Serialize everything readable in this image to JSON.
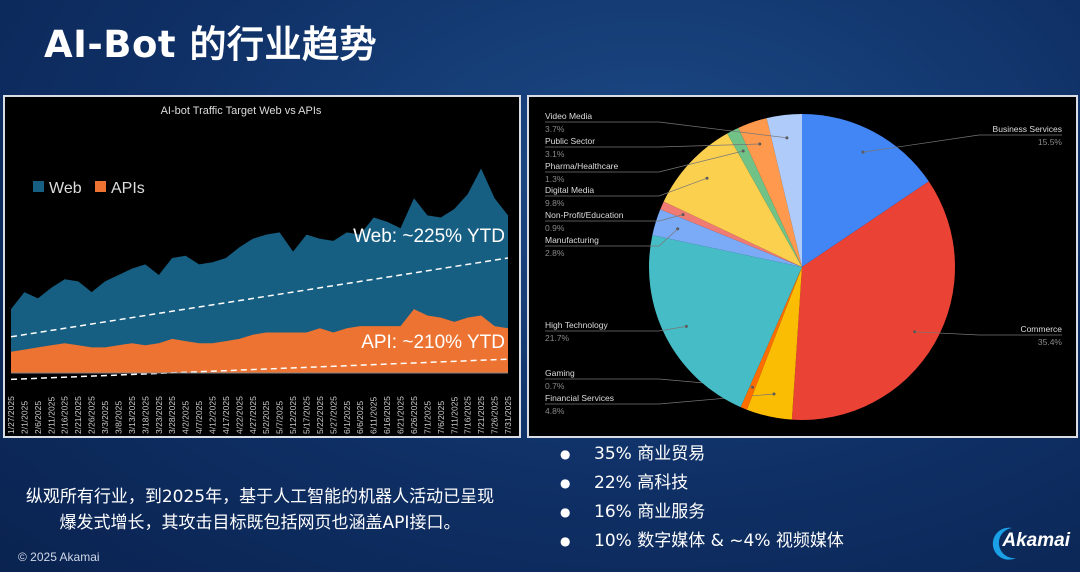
{
  "title": "AI-Bot 的行业趋势",
  "copyright": "© 2025 Akamai",
  "logo_text": "Akamai",
  "note": "纵观所有行业，到2025年，基于人工智能的机器人活动已呈现爆发式增长，其攻击目标既包括网页也涵盖API接口。",
  "bullets": [
    "35% 商业贸易",
    "22% 高科技",
    "16% 商业服务",
    "10% 数字媒体 & ~4% 视频媒体"
  ],
  "chart_data": [
    {
      "type": "area",
      "title": "AI-bot Traffic Target Web vs APIs",
      "categories": [
        "1/27/2025",
        "2/1/2025",
        "2/6/2025",
        "2/11/2025",
        "2/16/2025",
        "2/21/2025",
        "2/26/2025",
        "3/3/2025",
        "3/8/2025",
        "3/13/2025",
        "3/18/2025",
        "3/23/2025",
        "3/28/2025",
        "4/2/2025",
        "4/7/2025",
        "4/12/2025",
        "4/17/2025",
        "4/22/2025",
        "4/27/2025",
        "5/2/2025",
        "5/7/2025",
        "5/12/2025",
        "5/17/2025",
        "5/22/2025",
        "5/27/2025",
        "6/1/2025",
        "6/6/2025",
        "6/11/2025",
        "6/16/2025",
        "6/21/2025",
        "6/26/2025",
        "7/1/2025",
        "7/6/2025",
        "7/11/2025",
        "7/16/2025",
        "7/21/2025",
        "7/26/2025",
        "7/31/2025"
      ],
      "series": [
        {
          "name": "Web",
          "color": "#175f82",
          "values": [
            30,
            38,
            35,
            40,
            44,
            43,
            38,
            43,
            46,
            49,
            51,
            46,
            54,
            55,
            51,
            52,
            54,
            59,
            63,
            65,
            66,
            57,
            65,
            63,
            62,
            66,
            65,
            73,
            71,
            68,
            82,
            74,
            73,
            77,
            84,
            96,
            82,
            74
          ],
          "trend": [
            17,
            54
          ],
          "annotation": "Web: ~225% YTD"
        },
        {
          "name": "APIs",
          "color": "#ec7331",
          "values": [
            10,
            11,
            12,
            13,
            14,
            13,
            12,
            12,
            13,
            14,
            13,
            14,
            16,
            15,
            14,
            14,
            15,
            16,
            18,
            19,
            19,
            19,
            19,
            21,
            19,
            21,
            22,
            22,
            22,
            22,
            30,
            27,
            26,
            24,
            26,
            27,
            22,
            21
          ],
          "trend": [
            -3,
            6.5
          ],
          "annotation": "API: ~210% YTD"
        }
      ],
      "ylim": [
        0,
        100
      ],
      "legend": "top-left"
    },
    {
      "type": "pie",
      "slices": [
        {
          "label": "Business Services",
          "value": 15.5,
          "pct": "15.5%",
          "color": "#4285f4",
          "side": "right"
        },
        {
          "label": "Commerce",
          "value": 35.4,
          "pct": "35.4%",
          "color": "#ea4335",
          "side": "right"
        },
        {
          "label": "Financial Services",
          "value": 4.8,
          "pct": "4.8%",
          "color": "#fbbc04",
          "side": "left"
        },
        {
          "label": "Gaming",
          "value": 0.7,
          "pct": "0.7%",
          "color": "#ff6d01",
          "side": "left"
        },
        {
          "label": "High Technology",
          "value": 21.7,
          "pct": "21.7%",
          "color": "#46bdc6",
          "side": "left"
        },
        {
          "label": "Manufacturing",
          "value": 2.8,
          "pct": "2.8%",
          "color": "#7baaf7",
          "side": "left"
        },
        {
          "label": "Non-Profit/Education",
          "value": 0.9,
          "pct": "0.9%",
          "color": "#f07b72",
          "side": "left"
        },
        {
          "label": "Digital Media",
          "value": 9.8,
          "pct": "9.8%",
          "color": "#fcd04f",
          "side": "left"
        },
        {
          "label": "Pharma/Healthcare",
          "value": 1.3,
          "pct": "1.3%",
          "color": "#71c287",
          "side": "left"
        },
        {
          "label": "Public Sector",
          "value": 3.1,
          "pct": "3.1%",
          "color": "#ff994d",
          "side": "left"
        },
        {
          "label": "Video Media",
          "value": 3.7,
          "pct": "3.7%",
          "color": "#aecbfa",
          "side": "left"
        }
      ]
    }
  ]
}
